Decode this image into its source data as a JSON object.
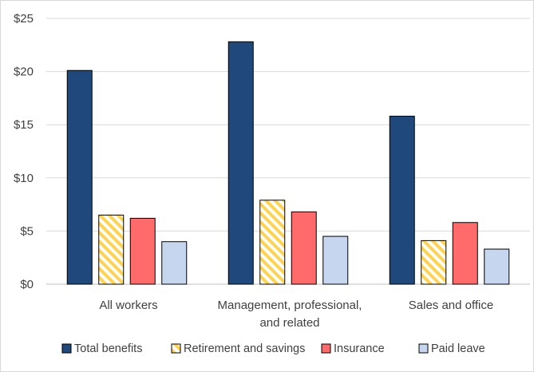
{
  "chart_data": {
    "type": "bar",
    "categories": [
      [
        "All workers"
      ],
      [
        "Management, professional,",
        "and related"
      ],
      [
        "Sales and office"
      ]
    ],
    "series": [
      {
        "name": "Total benefits",
        "values": [
          20.1,
          22.8,
          15.8
        ],
        "color": "#1f497d",
        "pattern": "solid"
      },
      {
        "name": "Retirement and savings",
        "values": [
          6.5,
          7.9,
          4.1
        ],
        "color": "#ffd34d",
        "pattern": "diagonal-hatch"
      },
      {
        "name": "Insurance",
        "values": [
          6.2,
          6.8,
          5.8
        ],
        "color": "#ff6b6b",
        "pattern": "solid"
      },
      {
        "name": "Paid leave",
        "values": [
          4.0,
          4.5,
          3.3
        ],
        "color": "#c6d6ee",
        "pattern": "solid"
      }
    ],
    "y_ticks": [
      "$0",
      "$5",
      "$10",
      "$15",
      "$20",
      "$25"
    ],
    "ylim": [
      0,
      25
    ],
    "title": "",
    "xlabel": "",
    "ylabel": "",
    "grid": true,
    "legend_position": "bottom"
  }
}
